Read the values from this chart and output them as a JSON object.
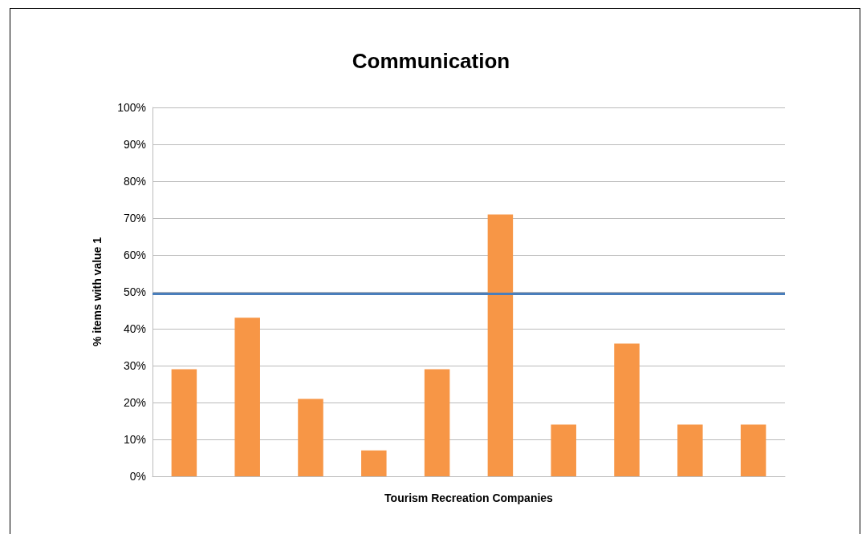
{
  "chart_data": {
    "type": "bar",
    "title": "Communication",
    "xlabel": "Tourism Recreation Companies",
    "ylabel": "% items with value 1",
    "categories": [
      null,
      null,
      null,
      null,
      null,
      null,
      null,
      null,
      null,
      null
    ],
    "values": [
      29,
      43,
      21,
      7,
      29,
      71,
      14,
      36,
      14,
      14
    ],
    "color": "#f79646",
    "ylim": [
      0,
      100
    ],
    "yticks": [
      {
        "value": 0,
        "label": "0%"
      },
      {
        "value": 10,
        "label": "10%"
      },
      {
        "value": 20,
        "label": "20%"
      },
      {
        "value": 30,
        "label": "30%"
      },
      {
        "value": 40,
        "label": "40%"
      },
      {
        "value": 50,
        "label": "50%"
      },
      {
        "value": 60,
        "label": "60%"
      },
      {
        "value": 70,
        "label": "70%"
      },
      {
        "value": 80,
        "label": "80%"
      },
      {
        "value": 90,
        "label": "90%"
      },
      {
        "value": 100,
        "label": "100%"
      }
    ],
    "grid": "y",
    "ref_lines": [
      {
        "axis": "y",
        "value": 49.5,
        "color": "#4a7ebb"
      }
    ]
  }
}
